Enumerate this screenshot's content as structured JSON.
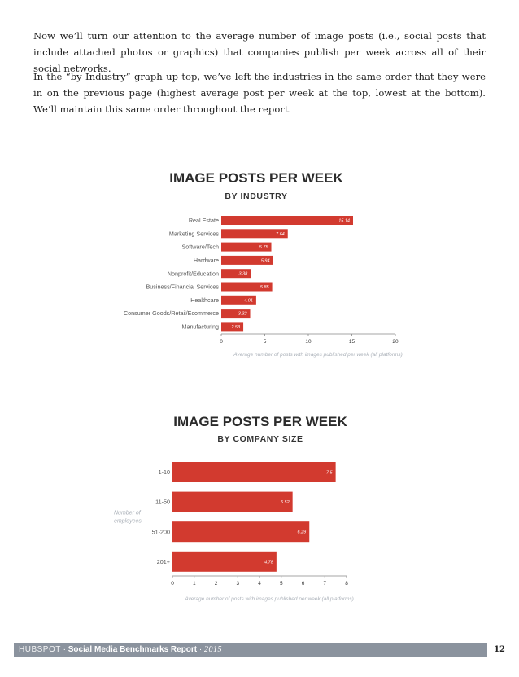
{
  "paragraphs": {
    "p1": "Now we’ll turn our attention to the average number of image posts (i.e., social posts that include attached photos or graphics) that companies publish per week across all of their social networks.",
    "p2": "In the “by Industry” graph up top, we’ve left the industries in the same order that they were in on the previous page (highest average post per week at the top, lowest at the bottom). We’ll maintain this same order throughout the report."
  },
  "chart_data": [
    {
      "type": "bar",
      "orientation": "horizontal",
      "title": "IMAGE POSTS PER WEEK",
      "subtitle": "BY INDUSTRY",
      "categories": [
        "Real Estate",
        "Marketing Services",
        "Software/Tech",
        "Hardware",
        "Nonprofit/Education",
        "Business/Financial Services",
        "Healthcare",
        "Consumer Goods/Retail/Ecommerce",
        "Manufacturing"
      ],
      "values": [
        15.14,
        7.64,
        5.75,
        5.94,
        3.38,
        5.85,
        4.01,
        3.32,
        2.53
      ],
      "value_labels": [
        "15.14",
        "7.64",
        "5.75",
        "5.94",
        "3.38",
        "5.85",
        "4.01",
        "3.32",
        "2.53"
      ],
      "xlim": [
        0,
        20
      ],
      "xticks": [
        "0",
        "5",
        "10",
        "15",
        "20"
      ],
      "xlabel": "Average number of posts with images published per week (all platforms)",
      "ylabel": "",
      "bar_color": "#d23a2f"
    },
    {
      "type": "bar",
      "orientation": "horizontal",
      "title": "IMAGE POSTS PER WEEK",
      "subtitle": "BY COMPANY SIZE",
      "categories": [
        "1-10",
        "11-50",
        "51-200",
        "201+"
      ],
      "values": [
        7.5,
        5.52,
        6.29,
        4.78
      ],
      "value_labels": [
        "7.5",
        "5.52",
        "6.29",
        "4.78"
      ],
      "xlim": [
        0,
        8
      ],
      "xticks": [
        "0",
        "1",
        "2",
        "3",
        "4",
        "5",
        "6",
        "7",
        "8"
      ],
      "xlabel": "Average number of posts with images published per week (all platforms)",
      "ylabel": "Number of employees",
      "bar_color": "#d23a2f"
    }
  ],
  "footer": {
    "brand": "HUBSPOT",
    "separator": "·",
    "report": "Social Media Benchmarks Report",
    "year": "2015",
    "page": "12"
  }
}
